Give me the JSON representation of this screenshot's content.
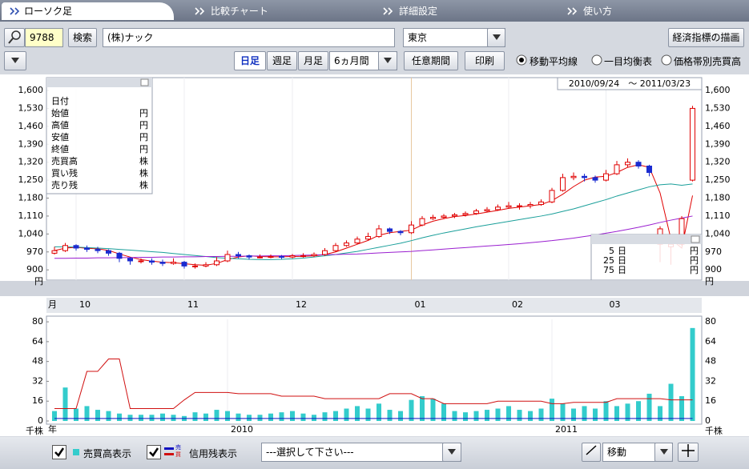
{
  "tabs": [
    "ローソク足",
    "比較チャート",
    "詳細設定",
    "使い方"
  ],
  "search": {
    "code": "9788",
    "button": "検索",
    "name": "(株)ナック",
    "market": "東京",
    "indicator_button": "経済指標の描画"
  },
  "toolbar": {
    "periods": [
      "日足",
      "週足",
      "月足"
    ],
    "range": "6ヵ月間",
    "custom": "任意期間",
    "print": "印刷",
    "radios": [
      "移動平均線",
      "一目均衡表",
      "価格帯別売買高"
    ]
  },
  "chart_data": [
    {
      "type": "candlestick",
      "date_range": "2010/09/24　～ 2011/03/23",
      "unit": "円",
      "info_box": {
        "label": "日付",
        "items": [
          {
            "label": "始値",
            "unit": "円"
          },
          {
            "label": "高値",
            "unit": "円"
          },
          {
            "label": "安値",
            "unit": "円"
          },
          {
            "label": "終値",
            "unit": "円"
          },
          {
            "label": "売買高",
            "unit": "株"
          },
          {
            "label": "買い残",
            "unit": "株"
          },
          {
            "label": "売り残",
            "unit": "株"
          }
        ]
      },
      "ylim": [
        860,
        1650
      ],
      "yticks": [
        900,
        970,
        {
          "value": 1040,
          "label": "1,040"
        },
        {
          "value": 1110,
          "label": "1,110"
        },
        {
          "value": 1180,
          "label": "1,180"
        },
        {
          "value": 1250,
          "label": "1,250"
        },
        {
          "value": 1320,
          "label": "1,320"
        },
        {
          "value": 1390,
          "label": "1,390"
        },
        {
          "value": 1460,
          "label": "1,460"
        },
        {
          "value": 1530,
          "label": "1,530"
        },
        {
          "value": 1600,
          "label": "1,600"
        }
      ],
      "xlim": [
        -0.74,
        59.85
      ],
      "x_axis": {
        "unit": "月",
        "ticks": [
          {
            "value": 2,
            "label": "10"
          },
          {
            "value": 12,
            "label": "11"
          },
          {
            "value": 22,
            "label": "12"
          },
          {
            "value": 33,
            "label": "01"
          },
          {
            "value": 42,
            "label": "02"
          },
          {
            "value": 51,
            "label": "03"
          }
        ]
      },
      "cursor": {
        "x": 33
      },
      "up_color": "#e00000",
      "down_color": "#1a2bd0",
      "candles": [
        [
          965,
          990,
          960,
          975
        ],
        [
          975,
          1005,
          970,
          995
        ],
        [
          995,
          1000,
          975,
          985
        ],
        [
          985,
          995,
          970,
          980
        ],
        [
          980,
          990,
          965,
          975
        ],
        [
          975,
          980,
          955,
          965
        ],
        [
          965,
          970,
          930,
          945
        ],
        [
          945,
          950,
          920,
          935
        ],
        [
          935,
          945,
          925,
          935
        ],
        [
          935,
          945,
          920,
          930
        ],
        [
          930,
          940,
          915,
          925
        ],
        [
          925,
          945,
          920,
          930
        ],
        [
          930,
          935,
          905,
          915
        ],
        [
          915,
          925,
          905,
          915
        ],
        [
          915,
          930,
          910,
          920
        ],
        [
          920,
          950,
          915,
          935
        ],
        [
          935,
          975,
          930,
          960
        ],
        [
          960,
          970,
          945,
          955
        ],
        [
          955,
          960,
          940,
          950
        ],
        [
          950,
          960,
          945,
          950
        ],
        [
          950,
          960,
          945,
          952
        ],
        [
          952,
          958,
          942,
          950
        ],
        [
          950,
          962,
          945,
          955
        ],
        [
          955,
          965,
          948,
          955
        ],
        [
          955,
          968,
          950,
          960
        ],
        [
          960,
          985,
          955,
          975
        ],
        [
          975,
          1005,
          970,
          995
        ],
        [
          995,
          1015,
          990,
          1005
        ],
        [
          1005,
          1030,
          1000,
          1020
        ],
        [
          1020,
          1045,
          1015,
          1030
        ],
        [
          1030,
          1075,
          1025,
          1060
        ],
        [
          1060,
          1065,
          1040,
          1050
        ],
        [
          1050,
          1055,
          1035,
          1045
        ],
        [
          1045,
          1090,
          1040,
          1075
        ],
        [
          1075,
          1110,
          1070,
          1100
        ],
        [
          1100,
          1115,
          1095,
          1105
        ],
        [
          1105,
          1118,
          1098,
          1110
        ],
        [
          1110,
          1122,
          1102,
          1115
        ],
        [
          1115,
          1128,
          1108,
          1120
        ],
        [
          1120,
          1138,
          1115,
          1130
        ],
        [
          1130,
          1145,
          1125,
          1135
        ],
        [
          1135,
          1155,
          1130,
          1145
        ],
        [
          1145,
          1165,
          1140,
          1150
        ],
        [
          1150,
          1160,
          1135,
          1150
        ],
        [
          1150,
          1165,
          1140,
          1155
        ],
        [
          1155,
          1175,
          1150,
          1165
        ],
        [
          1165,
          1220,
          1160,
          1210
        ],
        [
          1210,
          1275,
          1205,
          1260
        ],
        [
          1260,
          1280,
          1250,
          1265
        ],
        [
          1265,
          1275,
          1245,
          1260
        ],
        [
          1260,
          1268,
          1240,
          1250
        ],
        [
          1250,
          1290,
          1245,
          1275
        ],
        [
          1275,
          1325,
          1270,
          1310
        ],
        [
          1310,
          1335,
          1300,
          1320
        ],
        [
          1320,
          1328,
          1295,
          1305
        ],
        [
          1305,
          1310,
          1265,
          1280
        ],
        [
          1000,
          1070,
          930,
          1060
        ],
        [
          990,
          1020,
          920,
          1000
        ],
        [
          1000,
          1110,
          995,
          1100
        ],
        [
          1250,
          1540,
          1245,
          1530
        ]
      ],
      "ma_unit": "円",
      "moving_averages": [
        {
          "name": "5",
          "unit": "日",
          "color": "#e00000",
          "values": [
            975,
            985,
            988,
            984,
            982,
            976,
            962,
            950,
            940,
            934,
            930,
            928,
            924,
            920,
            918,
            925,
            940,
            950,
            955,
            952,
            951,
            951,
            952,
            953,
            955,
            960,
            970,
            985,
            1000,
            1015,
            1035,
            1045,
            1050,
            1055,
            1075,
            1090,
            1100,
            1108,
            1112,
            1118,
            1125,
            1132,
            1140,
            1145,
            1150,
            1155,
            1170,
            1195,
            1225,
            1250,
            1262,
            1265,
            1280,
            1300,
            1310,
            1300,
            1200,
            1020,
            985,
            1190
          ]
        },
        {
          "name": "25",
          "unit": "日",
          "color": "#1a9f9a",
          "values": [
            990,
            990,
            989,
            987,
            985,
            983,
            980,
            977,
            974,
            971,
            968,
            964,
            960,
            956,
            952,
            948,
            945,
            943,
            941,
            940,
            940,
            941,
            943,
            946,
            950,
            955,
            960,
            966,
            972,
            980,
            988,
            996,
            1004,
            1014,
            1025,
            1035,
            1044,
            1052,
            1060,
            1068,
            1075,
            1082,
            1089,
            1096,
            1103,
            1110,
            1118,
            1128,
            1138,
            1150,
            1162,
            1174,
            1188,
            1200,
            1212,
            1224,
            1232,
            1235,
            1230,
            1235
          ]
        },
        {
          "name": "75",
          "unit": "日",
          "color": "#9a1fd0",
          "values": [
            945,
            945,
            946,
            946,
            947,
            947,
            948,
            948,
            949,
            949,
            950,
            950,
            951,
            951,
            952,
            952,
            953,
            953,
            954,
            954,
            955,
            955,
            956,
            957,
            958,
            959,
            960,
            961,
            962,
            964,
            966,
            968,
            970,
            972,
            975,
            978,
            981,
            984,
            987,
            990,
            993,
            996,
            999,
            1002,
            1006,
            1010,
            1014,
            1019,
            1024,
            1030,
            1036,
            1043,
            1050,
            1058,
            1066,
            1075,
            1085,
            1094,
            1102,
            1110
          ]
        }
      ]
    },
    {
      "type": "bar",
      "unit": "千株",
      "color": "#33cccc",
      "ylim": [
        0,
        82
      ],
      "yticks": [
        0,
        16,
        32,
        48,
        64,
        80
      ],
      "xlim": [
        -0.74,
        59.85
      ],
      "x_axis": {
        "unit": "年",
        "ticks": [
          {
            "value": 16,
            "label": "2010"
          },
          {
            "value": 46,
            "label": "2011"
          }
        ]
      },
      "values": [
        8,
        27,
        10,
        12,
        9,
        8,
        6,
        5,
        5,
        5,
        6,
        5,
        4,
        7,
        6,
        9,
        8,
        6,
        5,
        5,
        6,
        7,
        8,
        6,
        5,
        7,
        8,
        10,
        12,
        10,
        14,
        9,
        8,
        17,
        20,
        18,
        14,
        8,
        7,
        8,
        9,
        10,
        12,
        9,
        8,
        10,
        18,
        14,
        10,
        12,
        10,
        16,
        12,
        14,
        16,
        22,
        12,
        30,
        20,
        75
      ],
      "lines": [
        {
          "color": "#d01010",
          "values": [
            10,
            10,
            10,
            40,
            40,
            50,
            50,
            10,
            10,
            10,
            10,
            10,
            17,
            23,
            23,
            23,
            23,
            22,
            22,
            22,
            22,
            20,
            20,
            20,
            20,
            18,
            18,
            18,
            18,
            18,
            18,
            22,
            22,
            22,
            18,
            18,
            14,
            14,
            14,
            14,
            14,
            16,
            16,
            16,
            16,
            16,
            14,
            14,
            15,
            15,
            15,
            15,
            18,
            18,
            18,
            18,
            18,
            17,
            17,
            17
          ]
        },
        {
          "color": "#1010c0",
          "values": [
            2,
            2,
            2,
            2,
            2,
            2,
            2,
            2,
            2,
            2,
            2,
            2,
            2,
            2,
            2,
            2,
            2,
            2,
            2,
            2,
            2,
            2,
            2,
            2,
            2,
            2,
            2,
            2,
            2,
            2,
            2,
            2,
            2,
            2,
            2,
            2,
            2,
            2,
            2,
            2,
            2,
            2,
            2,
            2,
            2,
            2,
            2,
            2,
            2,
            2,
            2,
            2,
            2,
            2,
            2,
            2,
            2,
            2,
            2,
            2
          ]
        }
      ]
    }
  ],
  "footer": {
    "volume_check": "売買高表示",
    "credit_icon": [
      "売",
      "買"
    ],
    "credit_check": "信用残表示",
    "select": "---選択して下さい---",
    "draw_select": "移動"
  }
}
